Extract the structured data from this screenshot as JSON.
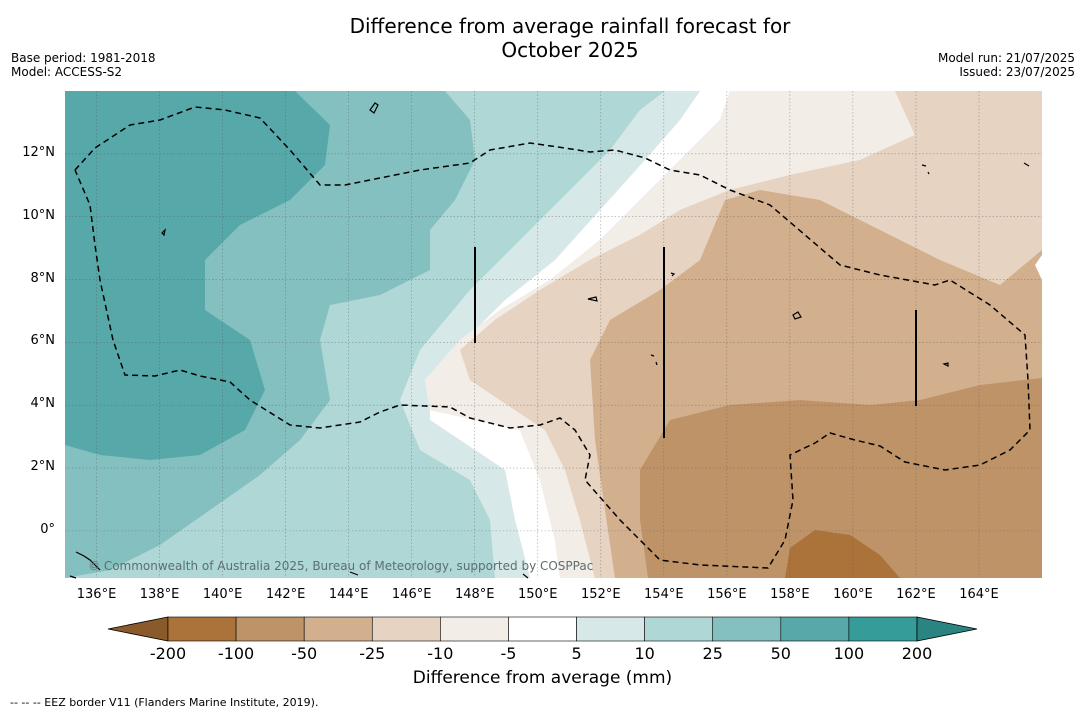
{
  "title_line1": "Difference from average rainfall forecast for",
  "title_line2": "October 2025",
  "base_period": "Base period: 1981-2018",
  "model": "Model: ACCESS-S2",
  "model_run": "Model run: 21/07/2025",
  "issued": "Issued: 23/07/2025",
  "copyright": "© Commonwealth of Australia 2025, Bureau of Meteorology, supported by COSPPac",
  "footer": "-- -- -- EEZ border V11 (Flanders Marine Institute, 2019).",
  "colorbar_title": "Difference from average (mm)",
  "colorbar_ticks": [
    "-200",
    "-100",
    "-50",
    "-25",
    "-10",
    "-5",
    "5",
    "10",
    "25",
    "50",
    "100",
    "200"
  ],
  "colorbar_colors": [
    "#8a5a2b",
    "#ab7339",
    "#bf9368",
    "#d2b08e",
    "#e6d3c1",
    "#f3ede7",
    "#ffffff",
    "#d6e9e8",
    "#afd7d6",
    "#84c0bf",
    "#57a8a8",
    "#369c99",
    "#2a8582"
  ],
  "y_ticks": [
    "12°N",
    "10°N",
    "8°N",
    "6°N",
    "4°N",
    "2°N",
    "0°"
  ],
  "x_ticks": [
    "136°E",
    "138°E",
    "140°E",
    "142°E",
    "144°E",
    "146°E",
    "148°E",
    "150°E",
    "152°E",
    "154°E",
    "156°E",
    "158°E",
    "160°E",
    "162°E",
    "164°E"
  ],
  "map": {
    "lon_range": [
      135,
      166
    ],
    "lat_range": [
      -1.5,
      14
    ]
  }
}
